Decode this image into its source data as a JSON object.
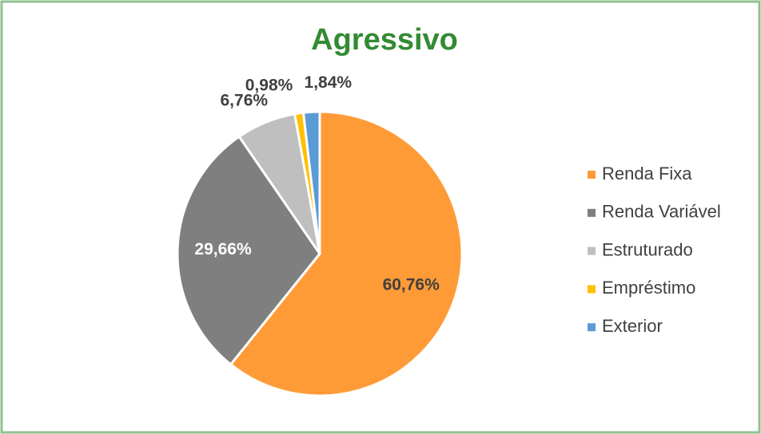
{
  "chart_data": {
    "type": "pie",
    "title": "Agressivo",
    "categories": [
      "Renda Fixa",
      "Renda Variável",
      "Estruturado",
      "Empréstimo",
      "Exterior"
    ],
    "values": [
      60.76,
      29.66,
      6.76,
      0.98,
      1.84
    ],
    "value_labels": [
      "60,76%",
      "29,66%",
      "6,76%",
      "0,98%",
      "1,84%"
    ],
    "colors": [
      "#ff9b37",
      "#7f7f7f",
      "#bfbfbf",
      "#ffc000",
      "#5b9bd5"
    ],
    "legend": "right"
  }
}
